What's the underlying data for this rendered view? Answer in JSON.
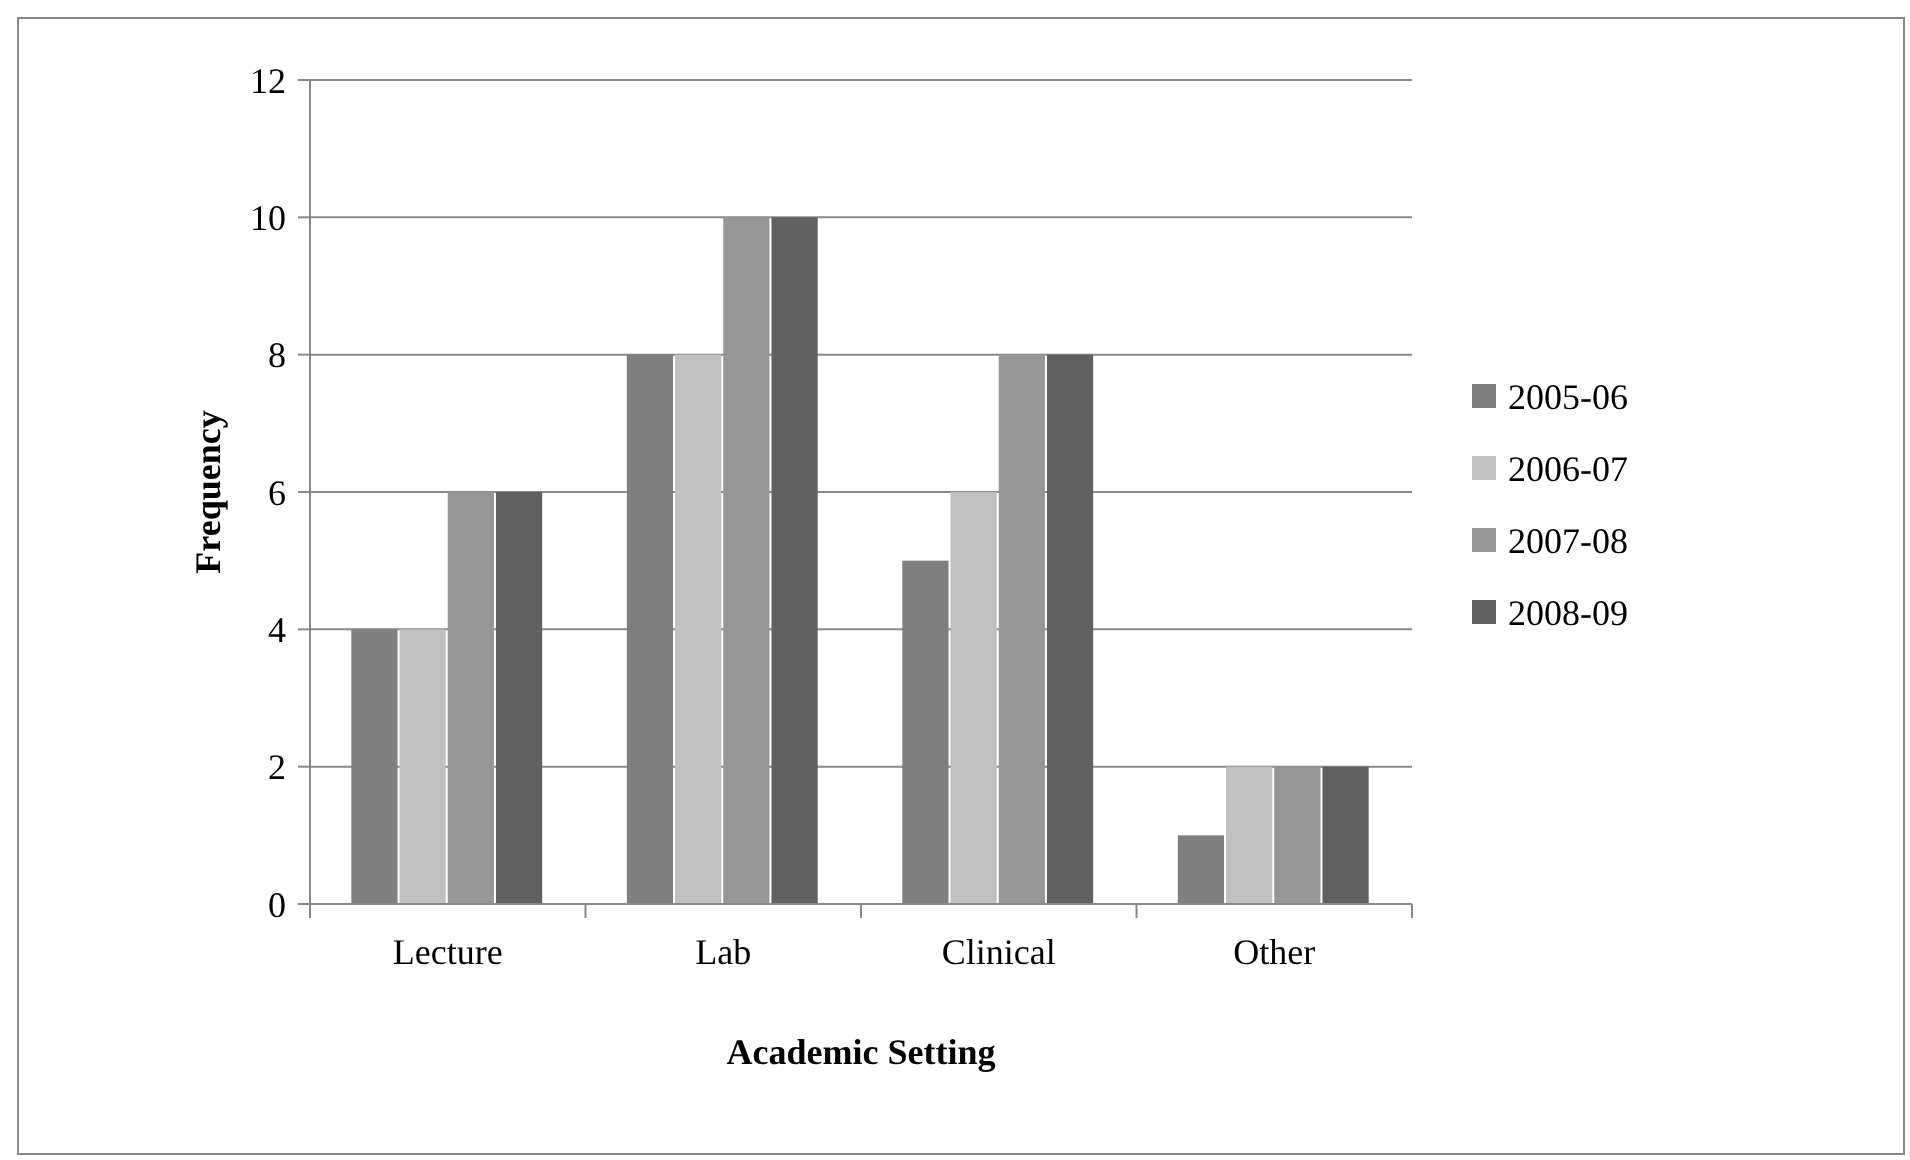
{
  "chart_data": {
    "type": "bar",
    "xlabel": "Academic Setting",
    "ylabel": "Frequency",
    "categories": [
      "Lecture",
      "Lab",
      "Clinical",
      "Other"
    ],
    "series": [
      {
        "name": "2005-06",
        "color": "#7f7f7f",
        "values": [
          4,
          8,
          5,
          1
        ]
      },
      {
        "name": "2006-07",
        "color": "#c0c0c0",
        "values": [
          4,
          8,
          6,
          2
        ]
      },
      {
        "name": "2007-08",
        "color": "#969696",
        "values": [
          6,
          10,
          8,
          2
        ]
      },
      {
        "name": "2008-09",
        "color": "#606060",
        "values": [
          6,
          10,
          8,
          2
        ]
      }
    ],
    "ylim": [
      0,
      12
    ],
    "yticks": [
      0,
      2,
      4,
      6,
      8,
      10,
      12
    ],
    "grid": "y",
    "legend": "right"
  }
}
